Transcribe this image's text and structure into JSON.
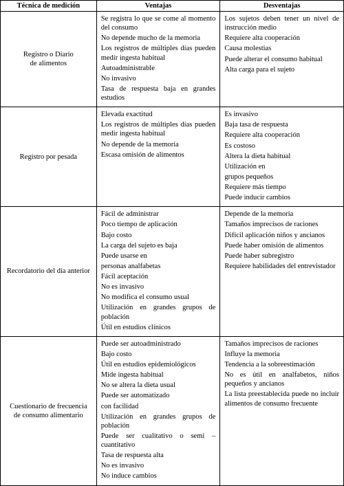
{
  "headers": {
    "tecnica": "Técnica de medición",
    "ventajas": "Ventajas",
    "desventajas": "Desventajas"
  },
  "rows": [
    {
      "tecnica": [
        "Registro o Diario",
        "de alimentos"
      ],
      "ventajas": [
        "Se registra lo que se come al momento del consumo",
        "No depende mucho de la memoria",
        "Los registros de múltiples días pueden medir ingesta habitual",
        "Autoadministrable",
        "No invasivo",
        "Tasa de respuesta baja en grandes estudios"
      ],
      "desventajas": [
        "Los sujetos deben tener un nivel de instrucción medio",
        "Requiere alta cooperación",
        "Causa molestias",
        "Puede alterar el consumo habitual",
        "Alta carga para el sujeto"
      ]
    },
    {
      "tecnica": [
        "Registro por pesada"
      ],
      "ventajas": [
        "Elevada exactitud",
        "Los registros de múltiples días pueden medir ingesta habitual",
        "No depende de la memoria",
        "Escasa omisión de alimentos"
      ],
      "desventajas": [
        "Es invasivo",
        "Baja tasa de respuesta",
        "Requiere alta cooperación",
        "Es costoso",
        "Altera la dieta habitual",
        "Utilización en",
        "grupos pequeños",
        "Requiere más tiempo",
        "Puede inducir cambios"
      ]
    },
    {
      "tecnica": [
        "Recordatorio del día anterior"
      ],
      "ventajas": [
        "Fácil de administrar",
        "Poco tiempo de aplicación",
        "Bajo costo",
        "La carga del sujeto es baja",
        "Puede usarse en",
        "personas analfabetas",
        "Fácil aceptación",
        "No es invasivo",
        "No modifica el consumo usual",
        "Utilización en grandes grupos de población",
        "Útil en estudios clínicos"
      ],
      "desventajas": [
        "Depende de la memoria",
        "Tamaños imprecisos de raciones",
        "Difícil aplicación niños y ancianos",
        "Puede haber omisión de alimentos",
        "Puede haber subregistro",
        "Requiere habilidades del entrevistador"
      ]
    },
    {
      "tecnica": [
        "Cuestionario de frecuencia",
        "de consumo alimentario"
      ],
      "ventajas": [
        "Puede ser autoadministrado",
        "Bajo costo",
        "Útil en estudios epidemiológicos",
        "Mide ingesta habitual",
        "No se altera la dieta usual",
        "Puede ser automatizado",
        "con facilidad",
        "Utilización en grandes grupos de población",
        "Puede ser cualitativo o semi – cuantitativo",
        "Tasa de respuesta alta",
        "No es invasivo",
        "No induce cambios"
      ],
      "desventajas": [
        "Tamaños imprecisos de raciones",
        "Influye la memoria",
        "Tendencia a la sobreestimación",
        "No es útil en analfabetos, niños pequeños y ancianos",
        "La lista preestablecida puede no incluir alimentos de consumo frecuente"
      ]
    }
  ]
}
